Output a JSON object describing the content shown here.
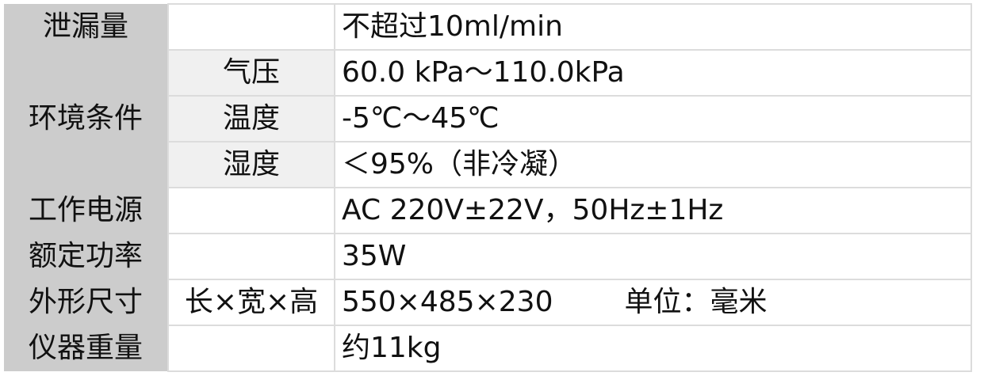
{
  "rows": [
    {
      "label": "泄漏量",
      "sub": "",
      "value": "不超过10ml/min"
    },
    {
      "label": "环境条件",
      "sub": "气压",
      "value": "60.0 kPa～110.0kPa"
    },
    {
      "label": "",
      "sub": "温度",
      "value": "-5℃～45℃"
    },
    {
      "label": "",
      "sub": "湿度",
      "value": "＜95%（非冷凝）"
    },
    {
      "label": "工作电源",
      "sub": "",
      "value": "AC 220V±22V，50Hz±1Hz"
    },
    {
      "label": "额定功率",
      "sub": "",
      "value": "35W"
    },
    {
      "label": "外形尺寸",
      "sub": "长×宽×高",
      "value": "550×485×230",
      "unit": "单位：毫米"
    },
    {
      "label": "仪器重量",
      "sub": "",
      "value": "约11kg"
    }
  ]
}
